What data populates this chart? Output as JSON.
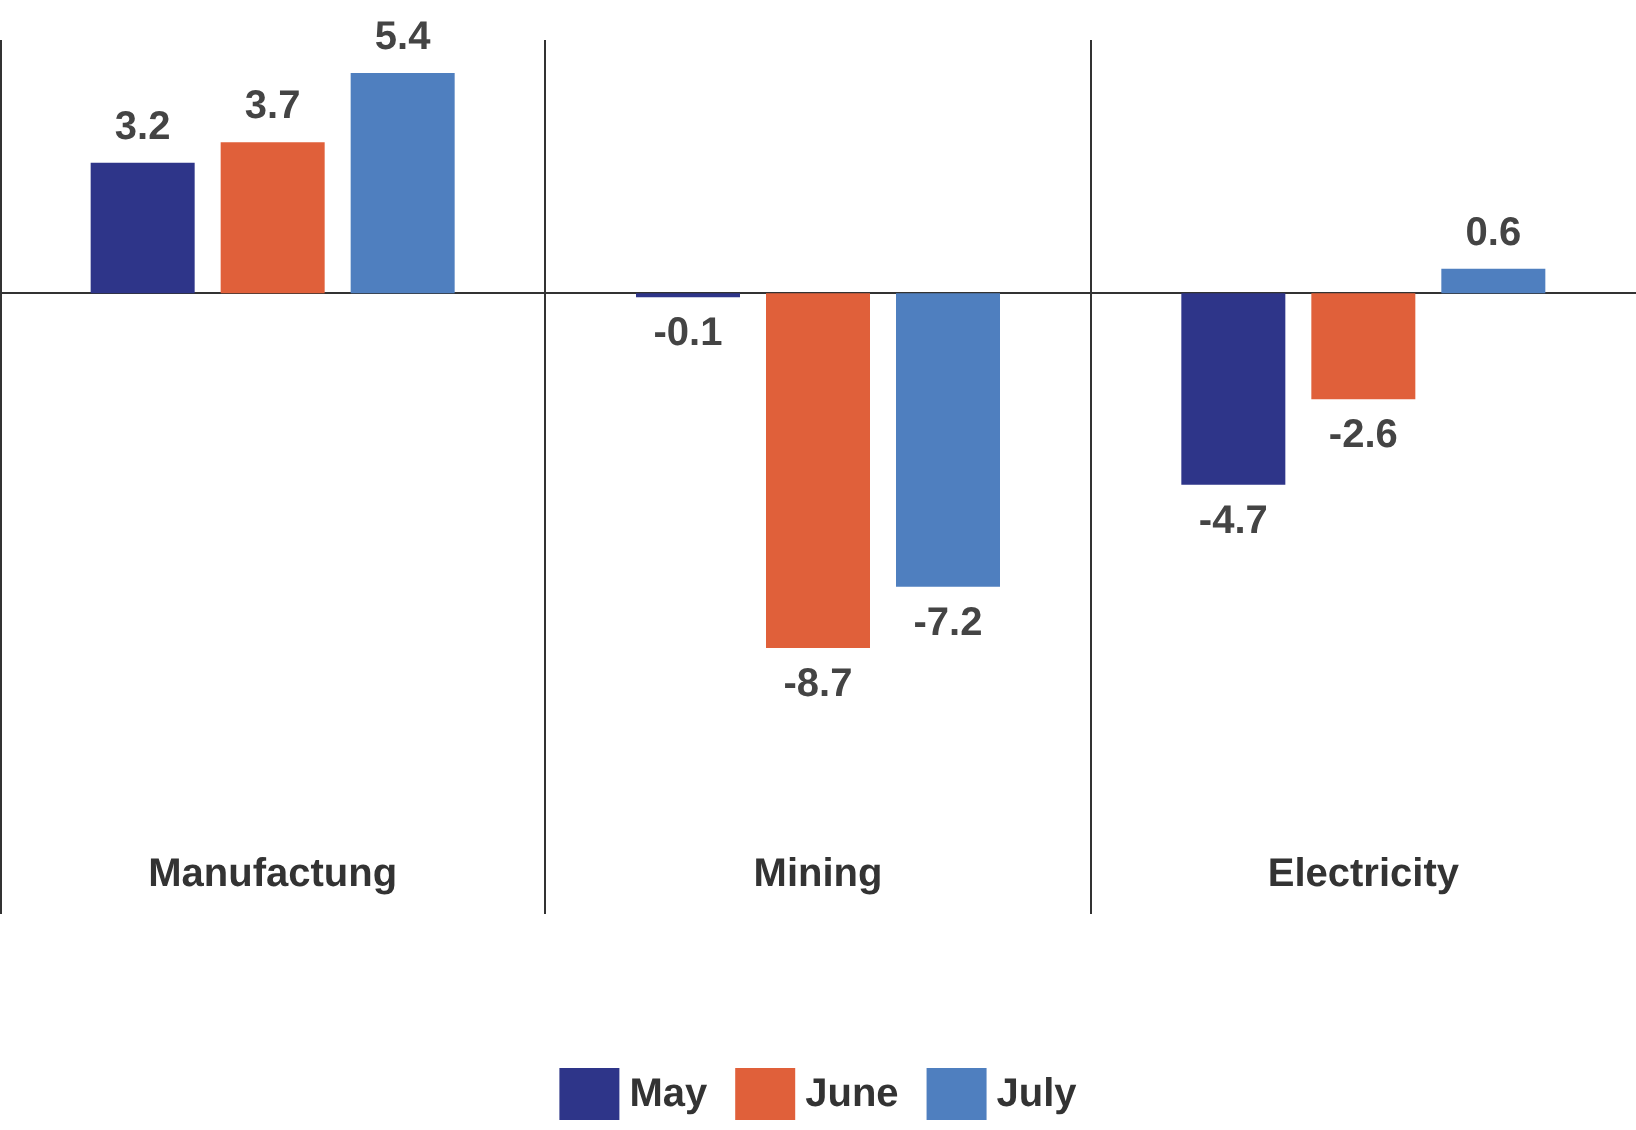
{
  "chart_data": {
    "type": "bar",
    "categories": [
      "Manufactung",
      "Mining",
      "Electricity"
    ],
    "series": [
      {
        "name": "May",
        "color": "#2e3589",
        "values": [
          3.2,
          -0.1,
          -4.7
        ]
      },
      {
        "name": "June",
        "color": "#e0603a",
        "values": [
          3.7,
          -8.7,
          -2.6
        ]
      },
      {
        "name": "July",
        "color": "#4f7fbf",
        "values": [
          5.4,
          -7.2,
          0.6
        ]
      }
    ],
    "data_labels": true,
    "grid": "x",
    "legend": "bottom"
  }
}
